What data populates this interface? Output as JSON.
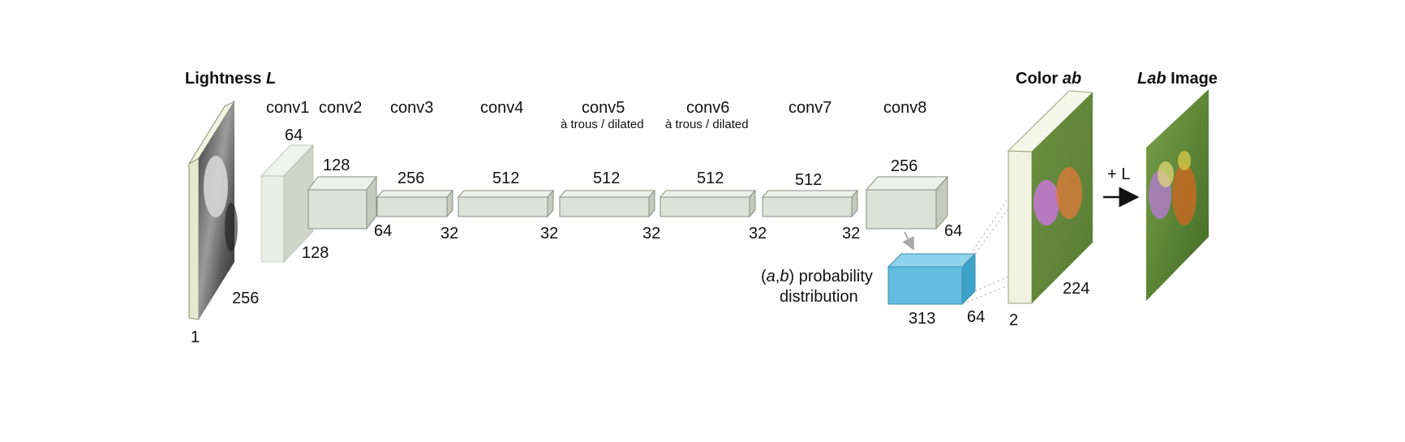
{
  "input": {
    "title_prefix": "Lightness ",
    "title_var": "L",
    "dim_channels": "1",
    "dim_size": "256"
  },
  "layers": [
    {
      "name": "conv1",
      "note": "",
      "channels": "64",
      "spatial": "128"
    },
    {
      "name": "conv2",
      "note": "",
      "channels": "128",
      "spatial": "64"
    },
    {
      "name": "conv3",
      "note": "",
      "channels": "256",
      "spatial": "32"
    },
    {
      "name": "conv4",
      "note": "",
      "channels": "512",
      "spatial": "32"
    },
    {
      "name": "conv5",
      "note": "à trous / dilated",
      "channels": "512",
      "spatial": "32"
    },
    {
      "name": "conv6",
      "note": "à trous / dilated",
      "channels": "512",
      "spatial": "32"
    },
    {
      "name": "conv7",
      "note": "",
      "channels": "512",
      "spatial": "32"
    },
    {
      "name": "conv8",
      "note": "",
      "channels": "256",
      "spatial": "64"
    }
  ],
  "distribution": {
    "label_a": "a",
    "label_comma": ",",
    "label_b": "b",
    "label_rest": " probability",
    "label_line2": "distribution",
    "dim_bins": "313",
    "dim_spatial": "64",
    "color": "#63bde0"
  },
  "color_ab": {
    "title_prefix": "Color ",
    "title_var": "ab",
    "dim_channels": "2",
    "dim_size": "224"
  },
  "plus_l": "+ L",
  "lab": {
    "title_var": "Lab",
    "title_rest": " Image"
  },
  "colors": {
    "block_face": "#dde1d7",
    "block_top": "#eef0ea",
    "block_side": "#c5cabd",
    "frame": "#eef2df"
  }
}
